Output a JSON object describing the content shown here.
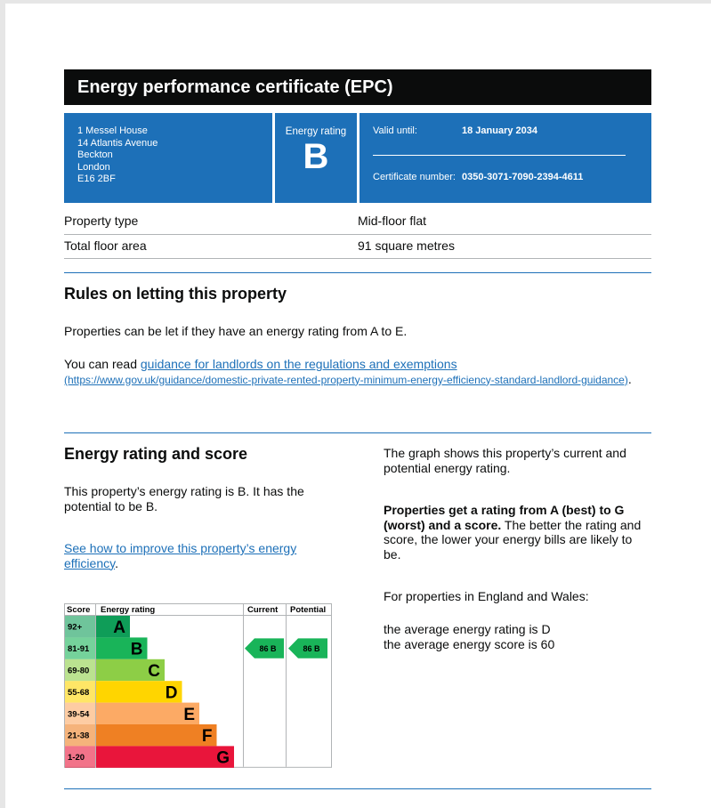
{
  "header": {
    "title": "Energy performance certificate (EPC)"
  },
  "summary": {
    "address": [
      "1 Messel House",
      "14 Atlantis Avenue",
      "Beckton",
      "London",
      "E16 2BF"
    ],
    "rating_label": "Energy rating",
    "rating": "B",
    "valid_label": "Valid until:",
    "valid_date": "18 January 2034",
    "cert_label": "Certificate number:",
    "cert_number": "0350-3071-7090-2394-4611"
  },
  "property": {
    "rows": [
      [
        "Property type",
        "Mid-floor flat"
      ],
      [
        "Total floor area",
        "91 square metres"
      ]
    ]
  },
  "letting": {
    "heading": "Rules on letting this property",
    "paragraph": "Properties can be let if they have an energy rating from A to E.",
    "link_intro": "You can read ",
    "link_text": "guidance for landlords on the regulations and exemptions",
    "link_url": "(https://www.gov.uk/guidance/domestic-private-rented-property-minimum-energy-efficiency-standard-landlord-guidance)",
    "link_end": "."
  },
  "rating_section": {
    "heading": "Energy rating and score",
    "intro": "This property’s energy rating is B. It has the potential to be B.",
    "link_text": "See how to improve this property’s energy efficiency",
    "link_end": ".",
    "right": {
      "p1": "The graph shows this property’s current and potential energy rating.",
      "p2_bold": "Properties get a rating from A (best) to G (worst) and a score.",
      "p2_rest": " The better the rating and score, the lower your energy bills are likely to be.",
      "p3": "For properties in England and Wales:",
      "p4": [
        "the average energy rating is D",
        "the average energy score is 60"
      ]
    }
  },
  "epc_chart": {
    "headers": [
      "Score",
      "Energy rating",
      "Current",
      "Potential"
    ],
    "bands": [
      {
        "score": "92+",
        "letter": "A",
        "color": "#0f9d58"
      },
      {
        "score": "81-91",
        "letter": "B",
        "color": "#19b459"
      },
      {
        "score": "69-80",
        "letter": "C",
        "color": "#8dce46"
      },
      {
        "score": "55-68",
        "letter": "D",
        "color": "#ffd500"
      },
      {
        "score": "39-54",
        "letter": "E",
        "color": "#fcaa65"
      },
      {
        "score": "21-38",
        "letter": "F",
        "color": "#ef8023"
      },
      {
        "score": "1-20",
        "letter": "G",
        "color": "#e9153b"
      }
    ],
    "current": {
      "score": 86,
      "letter": "B"
    },
    "potential": {
      "score": 86,
      "letter": "B"
    }
  }
}
